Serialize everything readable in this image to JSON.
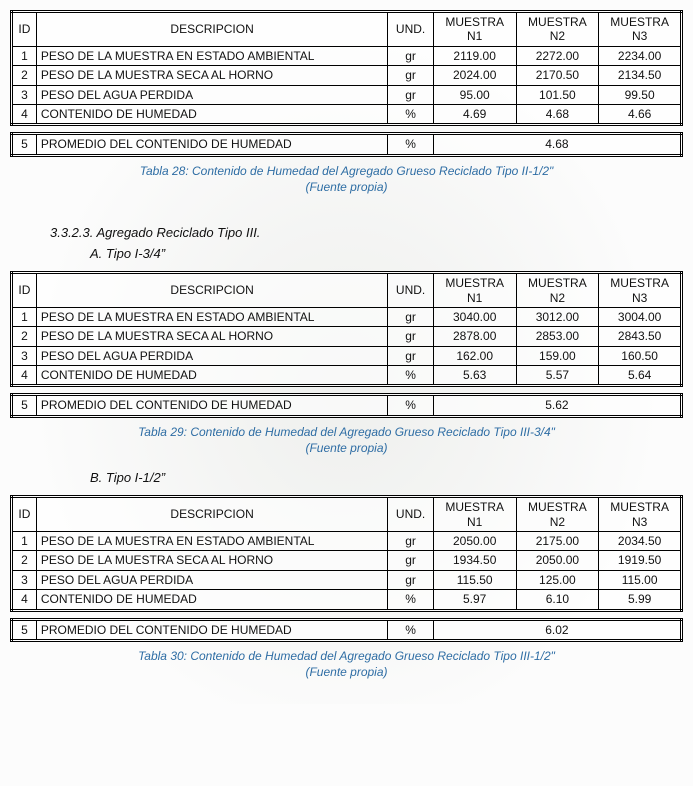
{
  "common": {
    "headers": {
      "id": "ID",
      "desc": "DESCRIPCION",
      "und": "UND.",
      "m1a": "MUESTRA",
      "m1b": "N1",
      "m2a": "MUESTRA",
      "m2b": "N2",
      "m3a": "MUESTRA",
      "m3b": "N3"
    },
    "row_desc": {
      "r1": "PESO DE LA MUESTRA EN ESTADO AMBIENTAL",
      "r2": "PESO DE LA MUESTRA SECA AL HORNO",
      "r3": "PESO DEL AGUA PERDIDA",
      "r4": "CONTENIDO DE HUMEDAD"
    },
    "row_und": {
      "gr": "gr",
      "pct": "%"
    },
    "avg": {
      "id": "5",
      "desc": "PROMEDIO DEL CONTENIDO DE HUMEDAD",
      "und": "%"
    },
    "fuente": "(Fuente propia)"
  },
  "block1": {
    "r1": {
      "id": "1",
      "m1": "2119.00",
      "m2": "2272.00",
      "m3": "2234.00"
    },
    "r2": {
      "id": "2",
      "m1": "2024.00",
      "m2": "2170.50",
      "m3": "2134.50"
    },
    "r3": {
      "id": "3",
      "m1": "95.00",
      "m2": "101.50",
      "m3": "99.50"
    },
    "r4": {
      "id": "4",
      "m1": "4.69",
      "m2": "4.68",
      "m3": "4.66"
    },
    "avg_value": "4.68",
    "caption": "Tabla 28: Contenido de Humedad del Agregado Grueso Reciclado Tipo II-1/2\""
  },
  "section3": {
    "heading": "3.3.2.3. Agregado Reciclado Tipo III.",
    "subA": "A.  Tipo I-3/4”",
    "subB": "B.  Tipo I-1/2”"
  },
  "block2": {
    "r1": {
      "id": "1",
      "m1": "3040.00",
      "m2": "3012.00",
      "m3": "3004.00"
    },
    "r2": {
      "id": "2",
      "m1": "2878.00",
      "m2": "2853.00",
      "m3": "2843.50"
    },
    "r3": {
      "id": "3",
      "m1": "162.00",
      "m2": "159.00",
      "m3": "160.50"
    },
    "r4": {
      "id": "4",
      "m1": "5.63",
      "m2": "5.57",
      "m3": "5.64"
    },
    "avg_value": "5.62",
    "caption": "Tabla 29: Contenido de Humedad del Agregado Grueso Reciclado Tipo III-3/4\""
  },
  "block3": {
    "r1": {
      "id": "1",
      "m1": "2050.00",
      "m2": "2175.00",
      "m3": "2034.50"
    },
    "r2": {
      "id": "2",
      "m1": "1934.50",
      "m2": "2050.00",
      "m3": "1919.50"
    },
    "r3": {
      "id": "3",
      "m1": "115.50",
      "m2": "125.00",
      "m3": "115.00"
    },
    "r4": {
      "id": "4",
      "m1": "5.97",
      "m2": "6.10",
      "m3": "5.99"
    },
    "avg_value": "6.02",
    "caption": "Tabla 30: Contenido de Humedad del Agregado Grueso Reciclado Tipo III-1/2\""
  }
}
